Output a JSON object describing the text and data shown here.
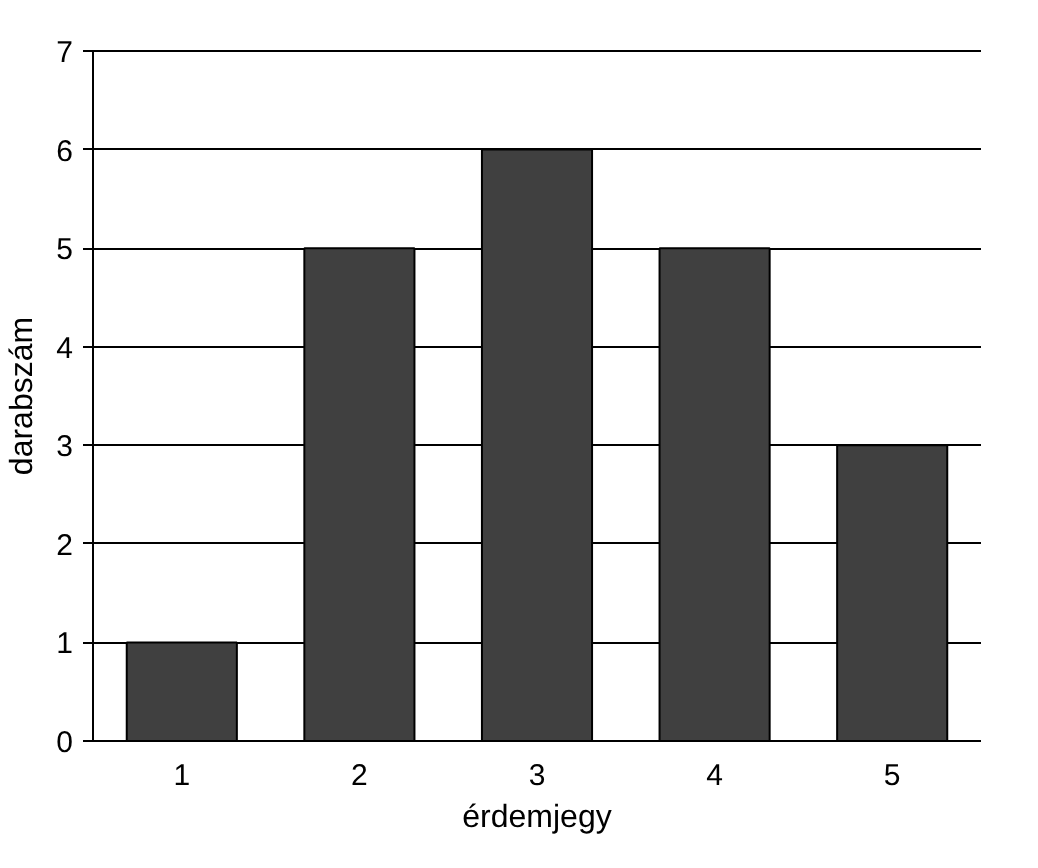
{
  "chart_data": {
    "type": "bar",
    "xlabel": "érdemjegy",
    "ylabel": "darabszám",
    "categories": [
      "1",
      "2",
      "3",
      "4",
      "5"
    ],
    "values": [
      1,
      5,
      6,
      5,
      3
    ],
    "color": "#404040",
    "ylim": [
      0,
      7
    ],
    "yticks": [
      0,
      1,
      2,
      3,
      4,
      5,
      6,
      7
    ],
    "grid": "y"
  }
}
